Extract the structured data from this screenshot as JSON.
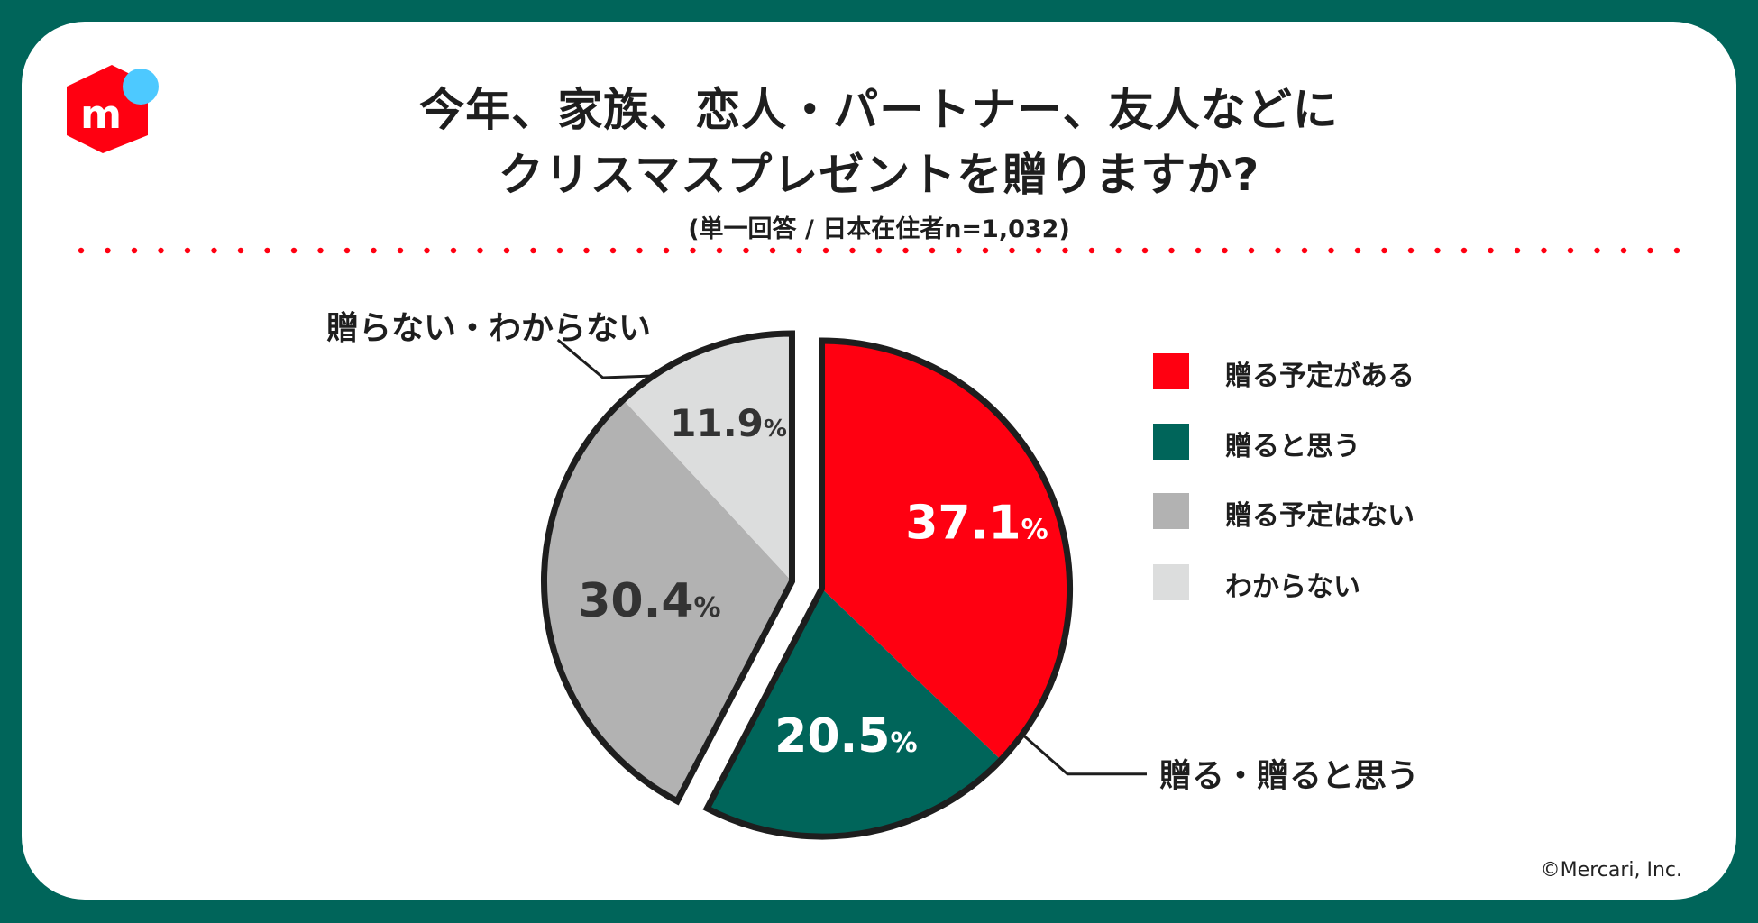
{
  "title_line1": "今年、家族、恋人・パートナー、友人などに",
  "title_line2": "クリスマスプレゼントを贈りますか?",
  "subtitle": "(単一回答 / 日本在住者n=1,032)",
  "logo_text": "m",
  "copyright": "©Mercari, Inc.",
  "colors": {
    "frame": "#00655a",
    "red": "#ff0011",
    "green": "#00655a",
    "gray": "#b2b2b2",
    "lightgray": "#dcdddd",
    "logo_dot": "#4dc9ff"
  },
  "chart_data": {
    "type": "pie",
    "categories": [
      "贈る予定がある",
      "贈ると思う",
      "贈る予定はない",
      "わからない"
    ],
    "values": [
      37.1,
      20.5,
      30.4,
      11.9
    ],
    "value_labels": [
      "37.1",
      "20.5",
      "30.4",
      "11.9"
    ],
    "unit": "%",
    "groups": [
      {
        "label": "贈る・贈ると思う",
        "categories": [
          "贈る予定がある",
          "贈ると思う"
        ]
      },
      {
        "label": "贈らない・わからない",
        "categories": [
          "贈る予定はない",
          "わからない"
        ]
      }
    ],
    "legend_position": "right"
  }
}
